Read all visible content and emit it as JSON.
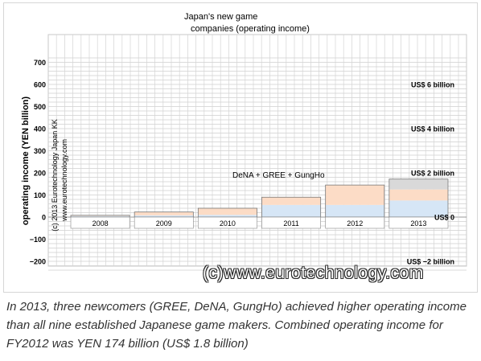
{
  "chart_data": {
    "type": "bar",
    "title_line1": "Japan's new game",
    "title_line2": "companies (operating income)",
    "ylabel": "operating income (YEN billion)",
    "ylim": [
      -250,
      750
    ],
    "yticks": [
      700,
      600,
      500,
      400,
      300,
      200,
      100,
      0,
      -100,
      -200
    ],
    "categories": [
      "2008",
      "2009",
      "2010",
      "2011",
      "2012",
      "2013"
    ],
    "stack_colors": [
      "#d6e6f6",
      "#fcdcc6",
      "#d9d9d9"
    ],
    "stacks": [
      [
        5,
        3,
        0
      ],
      [
        8,
        15,
        0
      ],
      [
        10,
        30,
        0
      ],
      [
        55,
        35,
        0
      ],
      [
        55,
        90,
        0
      ],
      [
        75,
        50,
        47
      ]
    ],
    "annotation": "DeNA + GREE + GungHo",
    "copyright_line1": "(c) 2013 Eurotechnology Japan KK",
    "copyright_line2": "www.eurotechnology.com",
    "usd_labels": [
      {
        "text": "US$ 6 billion",
        "y": 600
      },
      {
        "text": "US$ 4 billion",
        "y": 400
      },
      {
        "text": "US$ 2 billion",
        "y": 200
      },
      {
        "text": "US$ 0",
        "y": 0
      },
      {
        "text": "US$ −2 billion",
        "y": -200
      }
    ]
  },
  "watermark": "(c)www.eurotechnology.com",
  "caption": "In 2013, three newcomers (GREE, DeNA, GungHo) achieved higher operating income than all nine established Japanese game makers. Combined operating income for FY2012 was YEN 174 billion (US$ 1.8 billion)"
}
